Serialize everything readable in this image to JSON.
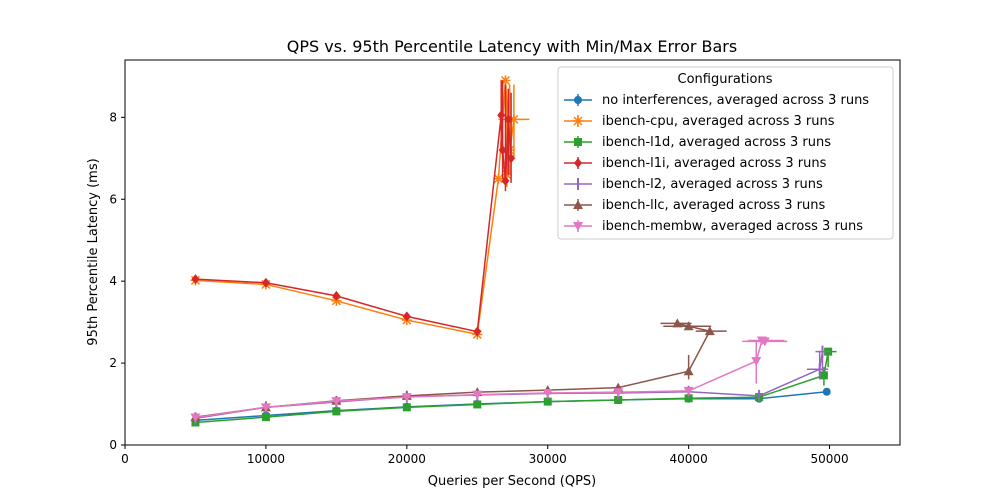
{
  "chart_data": {
    "type": "line",
    "title": "QPS vs. 95th Percentile Latency with Min/Max Error Bars",
    "xlabel": "Queries per Second (QPS)",
    "ylabel": "95th Percentile Latency (ms)",
    "xlim": [
      0,
      55000
    ],
    "ylim": [
      0,
      9.4
    ],
    "xticks": [
      0,
      10000,
      20000,
      30000,
      40000,
      50000
    ],
    "yticks": [
      0,
      2,
      4,
      6,
      8
    ],
    "grid": false,
    "legend_title": "Configurations",
    "legend_position": "top-right",
    "series": [
      {
        "name": "no interferences, averaged across 3 runs",
        "color": "#1f77b4",
        "marker": "circle",
        "points": [
          {
            "x": 5000,
            "y": 0.6,
            "yerr": [
              0.58,
              0.62
            ]
          },
          {
            "x": 10000,
            "y": 0.72,
            "yerr": [
              0.7,
              0.74
            ]
          },
          {
            "x": 15000,
            "y": 0.84,
            "yerr": [
              0.82,
              0.86
            ]
          },
          {
            "x": 20000,
            "y": 0.93,
            "yerr": [
              0.91,
              0.95
            ]
          },
          {
            "x": 25000,
            "y": 1.0,
            "yerr": [
              0.98,
              1.02
            ]
          },
          {
            "x": 30000,
            "y": 1.06,
            "yerr": [
              1.04,
              1.08
            ]
          },
          {
            "x": 35000,
            "y": 1.1,
            "yerr": [
              1.08,
              1.12
            ]
          },
          {
            "x": 40000,
            "y": 1.13,
            "yerr": [
              1.1,
              1.16
            ]
          },
          {
            "x": 45000,
            "y": 1.13,
            "yerr": [
              1.1,
              1.16
            ]
          },
          {
            "x": 49800,
            "y": 1.3,
            "yerr": [
              1.27,
              1.33
            ]
          }
        ]
      },
      {
        "name": "ibench-cpu, averaged across 3 runs",
        "color": "#ff7f0e",
        "marker": "x",
        "points": [
          {
            "x": 5000,
            "y": 4.02,
            "yerr": [
              3.98,
              4.06
            ]
          },
          {
            "x": 10000,
            "y": 3.92,
            "yerr": [
              3.88,
              3.96
            ]
          },
          {
            "x": 15000,
            "y": 3.52,
            "yerr": [
              3.48,
              3.56
            ]
          },
          {
            "x": 20000,
            "y": 3.05,
            "yerr": [
              3.0,
              3.1
            ]
          },
          {
            "x": 25000,
            "y": 2.7,
            "yerr": [
              2.66,
              2.74
            ]
          },
          {
            "x": 26500,
            "y": 6.5,
            "yerr": [
              6.4,
              6.6
            ]
          },
          {
            "x": 27000,
            "y": 8.9,
            "yerr": [
              7.9,
              9.0
            ]
          },
          {
            "x": 27300,
            "y": 7.2,
            "yerr": [
              6.6,
              8.8
            ]
          },
          {
            "x": 27600,
            "y": 7.95,
            "yerr": [
              7.0,
              8.8
            ],
            "xerr": [
              26500,
              28700
            ]
          },
          {
            "x": 27100,
            "y": 6.6,
            "yerr": [
              6.3,
              8.4
            ]
          }
        ]
      },
      {
        "name": "ibench-l1d, averaged across 3 runs",
        "color": "#2ca02c",
        "marker": "square",
        "points": [
          {
            "x": 5000,
            "y": 0.55,
            "yerr": [
              0.53,
              0.57
            ]
          },
          {
            "x": 10000,
            "y": 0.68,
            "yerr": [
              0.66,
              0.7
            ]
          },
          {
            "x": 15000,
            "y": 0.82,
            "yerr": [
              0.8,
              0.84
            ]
          },
          {
            "x": 20000,
            "y": 0.92,
            "yerr": [
              0.9,
              0.94
            ]
          },
          {
            "x": 25000,
            "y": 0.99,
            "yerr": [
              0.97,
              1.01
            ]
          },
          {
            "x": 30000,
            "y": 1.06,
            "yerr": [
              1.04,
              1.08
            ]
          },
          {
            "x": 35000,
            "y": 1.1,
            "yerr": [
              1.08,
              1.12
            ]
          },
          {
            "x": 40000,
            "y": 1.14,
            "yerr": [
              1.12,
              1.16
            ]
          },
          {
            "x": 45000,
            "y": 1.17,
            "yerr": [
              1.15,
              1.19
            ]
          },
          {
            "x": 49600,
            "y": 1.7,
            "yerr": [
              1.45,
              1.9
            ]
          },
          {
            "x": 49900,
            "y": 2.28,
            "yerr": [
              1.9,
              2.3
            ],
            "xerr": [
              49500,
              50500
            ]
          }
        ]
      },
      {
        "name": "ibench-l1i, averaged across 3 runs",
        "color": "#d62728",
        "marker": "diamond",
        "points": [
          {
            "x": 5000,
            "y": 4.05,
            "yerr": [
              4.0,
              4.1
            ]
          },
          {
            "x": 10000,
            "y": 3.96,
            "yerr": [
              3.92,
              4.0
            ]
          },
          {
            "x": 15000,
            "y": 3.64,
            "yerr": [
              3.6,
              3.68
            ]
          },
          {
            "x": 20000,
            "y": 3.14,
            "yerr": [
              3.1,
              3.18
            ]
          },
          {
            "x": 25000,
            "y": 2.77,
            "yerr": [
              2.73,
              2.81
            ]
          },
          {
            "x": 26700,
            "y": 8.05,
            "yerr": [
              7.2,
              8.9
            ]
          },
          {
            "x": 26800,
            "y": 7.2,
            "yerr": [
              6.5,
              8.9
            ]
          },
          {
            "x": 27000,
            "y": 6.45,
            "yerr": [
              6.2,
              8.8
            ]
          },
          {
            "x": 27200,
            "y": 7.95,
            "yerr": [
              6.6,
              8.7
            ]
          },
          {
            "x": 27400,
            "y": 7.0,
            "yerr": [
              6.4,
              8.6
            ]
          }
        ]
      },
      {
        "name": "ibench-l2, averaged across 3 runs",
        "color": "#9467bd",
        "marker": "vline",
        "points": [
          {
            "x": 5000,
            "y": 0.65,
            "yerr": [
              0.63,
              0.67
            ]
          },
          {
            "x": 10000,
            "y": 0.92,
            "yerr": [
              0.9,
              0.94
            ]
          },
          {
            "x": 15000,
            "y": 1.05,
            "yerr": [
              1.03,
              1.07
            ]
          },
          {
            "x": 20000,
            "y": 1.18,
            "yerr": [
              1.16,
              1.2
            ]
          },
          {
            "x": 25000,
            "y": 1.22,
            "yerr": [
              1.2,
              1.24
            ]
          },
          {
            "x": 30000,
            "y": 1.26,
            "yerr": [
              1.24,
              1.28
            ]
          },
          {
            "x": 35000,
            "y": 1.27,
            "yerr": [
              1.25,
              1.29
            ]
          },
          {
            "x": 40000,
            "y": 1.3,
            "yerr": [
              1.28,
              1.32
            ]
          },
          {
            "x": 45000,
            "y": 1.2,
            "yerr": [
              1.18,
              1.22
            ]
          },
          {
            "x": 49300,
            "y": 1.85,
            "yerr": [
              1.6,
              2.3
            ],
            "xerr": [
              48400,
              49900
            ]
          },
          {
            "x": 49500,
            "y": 2.28,
            "yerr": [
              1.8,
              2.35
            ],
            "xerr": [
              49000,
              50000
            ]
          }
        ]
      },
      {
        "name": "ibench-llc, averaged across 3 runs",
        "color": "#8c564b",
        "marker": "triangle",
        "points": [
          {
            "x": 5000,
            "y": 0.68,
            "yerr": [
              0.66,
              0.7
            ]
          },
          {
            "x": 10000,
            "y": 0.92,
            "yerr": [
              0.9,
              0.94
            ]
          },
          {
            "x": 15000,
            "y": 1.08,
            "yerr": [
              1.06,
              1.1
            ]
          },
          {
            "x": 20000,
            "y": 1.2,
            "yerr": [
              1.18,
              1.22
            ]
          },
          {
            "x": 25000,
            "y": 1.29,
            "yerr": [
              1.27,
              1.31
            ]
          },
          {
            "x": 30000,
            "y": 1.34,
            "yerr": [
              1.32,
              1.36
            ]
          },
          {
            "x": 35000,
            "y": 1.4,
            "yerr": [
              1.38,
              1.42
            ]
          },
          {
            "x": 40000,
            "y": 1.8,
            "yerr": [
              1.6,
              2.2
            ]
          },
          {
            "x": 41500,
            "y": 2.78,
            "yerr": [
              2.7,
              2.82
            ],
            "xerr": [
              40500,
              42700
            ]
          },
          {
            "x": 40000,
            "y": 2.9,
            "yerr": [
              2.82,
              3.0
            ],
            "xerr": [
              38200,
              41600
            ]
          },
          {
            "x": 39200,
            "y": 2.97,
            "yerr": [
              2.9,
              3.02
            ],
            "xerr": [
              38000,
              40200
            ]
          }
        ]
      },
      {
        "name": "ibench-membw, averaged across 3 runs",
        "color": "#e377c2",
        "marker": "triangle-down",
        "points": [
          {
            "x": 5000,
            "y": 0.67,
            "yerr": [
              0.65,
              0.69
            ]
          },
          {
            "x": 10000,
            "y": 0.92,
            "yerr": [
              0.9,
              0.94
            ]
          },
          {
            "x": 15000,
            "y": 1.07,
            "yerr": [
              1.05,
              1.09
            ]
          },
          {
            "x": 20000,
            "y": 1.17,
            "yerr": [
              1.15,
              1.19
            ]
          },
          {
            "x": 25000,
            "y": 1.23,
            "yerr": [
              1.21,
              1.25
            ]
          },
          {
            "x": 30000,
            "y": 1.27,
            "yerr": [
              1.25,
              1.29
            ]
          },
          {
            "x": 35000,
            "y": 1.29,
            "yerr": [
              1.27,
              1.31
            ]
          },
          {
            "x": 40000,
            "y": 1.32,
            "yerr": [
              1.3,
              1.34
            ]
          },
          {
            "x": 44800,
            "y": 2.05,
            "yerr": [
              1.5,
              2.55
            ]
          },
          {
            "x": 45200,
            "y": 2.55,
            "yerr": [
              2.5,
              2.58
            ],
            "xerr": [
              44200,
              46800
            ]
          },
          {
            "x": 45400,
            "y": 2.53,
            "yerr": [
              2.48,
              2.56
            ],
            "xerr": [
              43800,
              47000
            ]
          }
        ]
      }
    ]
  }
}
